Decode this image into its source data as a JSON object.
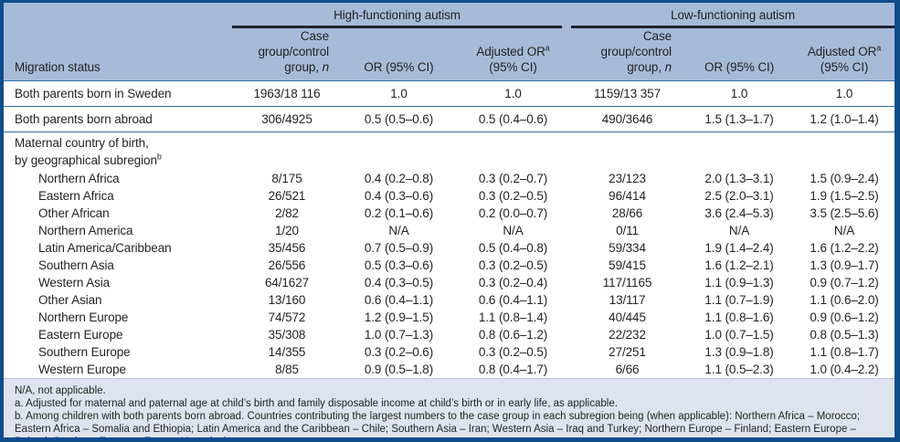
{
  "colors": {
    "frame_border": "#0f4c8c",
    "header_bg": "#a6bbd8",
    "footer_bg": "#dde4ef",
    "row_rule": "#2f6da8",
    "group_underline": "#1d2133",
    "text": "#232323"
  },
  "table": {
    "groups": [
      {
        "label": "High-functioning autism"
      },
      {
        "label": "Low-functioning autism"
      }
    ],
    "headers": {
      "migration_status": "Migration status",
      "case_group_line1": "Case group/control",
      "case_group_line2_prefix": "group, ",
      "case_group_italic": "n",
      "or_label": "OR (95% CI)",
      "adjusted_or_label": "Adjusted OR",
      "adjusted_or_sup": "a",
      "adjusted_or_line2": "(95% CI)"
    },
    "rows": [
      {
        "type": "data",
        "label": "Both parents born in Sweden",
        "indent": false,
        "rule_below": true,
        "hfa_n": "1963/18 116",
        "hfa_or": "1.0",
        "hfa_adj": "1.0",
        "lfa_n": "1159/13 357",
        "lfa_or": "1.0",
        "lfa_adj": "1.0"
      },
      {
        "type": "data",
        "label": "Both parents born abroad",
        "indent": false,
        "rule_below": true,
        "hfa_n": "306/4925",
        "hfa_or": "0.5 (0.5–0.6)",
        "hfa_adj": "0.5 (0.4–0.6)",
        "lfa_n": "490/3646",
        "lfa_or": "1.5 (1.3–1.7)",
        "lfa_adj": "1.2 (1.0–1.4)"
      },
      {
        "type": "section",
        "line1": "Maternal country of birth,",
        "line2": "by geographical subregion",
        "sup": "b"
      },
      {
        "type": "data",
        "label": "Northern Africa",
        "indent": true,
        "hfa_n": "8/175",
        "hfa_or": "0.4 (0.2–0.8)",
        "hfa_adj": "0.3 (0.2–0.7)",
        "lfa_n": "23/123",
        "lfa_or": "2.0 (1.3–3.1)",
        "lfa_adj": "1.5 (0.9–2.4)"
      },
      {
        "type": "data",
        "label": "Eastern Africa",
        "indent": true,
        "hfa_n": "26/521",
        "hfa_or": "0.4 (0.3–0.6)",
        "hfa_adj": "0.3 (0.2–0.5)",
        "lfa_n": "96/414",
        "lfa_or": "2.5 (2.0–3.1)",
        "lfa_adj": "1.9 (1.5–2.5)"
      },
      {
        "type": "data",
        "label": "Other African",
        "indent": true,
        "hfa_n": "2/82",
        "hfa_or": "0.2 (0.1–0.6)",
        "hfa_adj": "0.2 (0.0–0.7)",
        "lfa_n": "28/66",
        "lfa_or": "3.6 (2.4–5.3)",
        "lfa_adj": "3.5 (2.5–5.6)"
      },
      {
        "type": "data",
        "label": "Northern America",
        "indent": true,
        "hfa_n": "1/20",
        "hfa_or": "N/A",
        "hfa_adj": "N/A",
        "lfa_n": "0/11",
        "lfa_or": "N/A",
        "lfa_adj": "N/A"
      },
      {
        "type": "data",
        "label": "Latin America/Caribbean",
        "indent": true,
        "hfa_n": "35/456",
        "hfa_or": "0.7 (0.5–0.9)",
        "hfa_adj": "0.5 (0.4–0.8)",
        "lfa_n": "59/334",
        "lfa_or": "1.9 (1.4–2.4)",
        "lfa_adj": "1.6 (1.2–2.2)"
      },
      {
        "type": "data",
        "label": "Southern Asia",
        "indent": true,
        "hfa_n": "26/556",
        "hfa_or": "0.5 (0.3–0.6)",
        "hfa_adj": "0.3 (0.2–0.5)",
        "lfa_n": "59/415",
        "lfa_or": "1.6 (1.2–2.1)",
        "lfa_adj": "1.3 (0.9–1.7)"
      },
      {
        "type": "data",
        "label": "Western Asia",
        "indent": true,
        "hfa_n": "64/1627",
        "hfa_or": "0.4 (0.3–0.5)",
        "hfa_adj": "0.3 (0.2–0.4)",
        "lfa_n": "117/1165",
        "lfa_or": "1.1 (0.9–1.3)",
        "lfa_adj": "0.9 (0.7–1.2)"
      },
      {
        "type": "data",
        "label": "Other Asian",
        "indent": true,
        "hfa_n": "13/160",
        "hfa_or": "0.6 (0.4–1.1)",
        "hfa_adj": "0.6 (0.4–1.1)",
        "lfa_n": "13/117",
        "lfa_or": "1.1 (0.7–1.9)",
        "lfa_adj": "1.1 (0.6–2.0)"
      },
      {
        "type": "data",
        "label": "Northern Europe",
        "indent": true,
        "hfa_n": "74/572",
        "hfa_or": "1.2 (0.9–1.5)",
        "hfa_adj": "1.1 (0.8–1.4)",
        "lfa_n": "40/445",
        "lfa_or": "1.1 (0.8–1.6)",
        "lfa_adj": "0.9 (0.6–1.2)"
      },
      {
        "type": "data",
        "label": "Eastern Europe",
        "indent": true,
        "hfa_n": "35/308",
        "hfa_or": "1.0 (0.7–1.3)",
        "hfa_adj": "0.8 (0.6–1.2)",
        "lfa_n": "22/232",
        "lfa_or": "1.0 (0.7–1.5)",
        "lfa_adj": "0.8 (0.5–1.3)"
      },
      {
        "type": "data",
        "label": "Southern Europe",
        "indent": true,
        "hfa_n": "14/355",
        "hfa_or": "0.3 (0.2–0.6)",
        "hfa_adj": "0.3 (0.2–0.5)",
        "lfa_n": "27/251",
        "lfa_or": "1.3 (0.9–1.8)",
        "lfa_adj": "1.1 (0.8–1.7)"
      },
      {
        "type": "data",
        "label": "Western Europe",
        "indent": true,
        "hfa_n": "8/85",
        "hfa_or": "0.9 (0.5–1.8)",
        "hfa_adj": "0.8 (0.4–1.7)",
        "lfa_n": "6/66",
        "lfa_or": "1.1 (0.5–2.3)",
        "lfa_adj": "1.0 (0.4–2.2)"
      }
    ],
    "footnotes": [
      "N/A, not applicable.",
      "a. Adjusted for maternal and paternal age at child’s birth and family disposable income at child’s birth or in early life, as applicable.",
      "b. Among children with both parents born abroad. Countries contributing the largest numbers to the case group in each subregion being (when applicable): Northern Africa – Morocco; Eastern Africa – Somalia and Ethiopia; Latin America and the Caribbean – Chile; Southern Asia – Iran; Western Asia – Iraq and Turkey; Northern Europe – Finland; Eastern Europe – Poland; Southern Europe – Former Yugoslavia."
    ]
  }
}
